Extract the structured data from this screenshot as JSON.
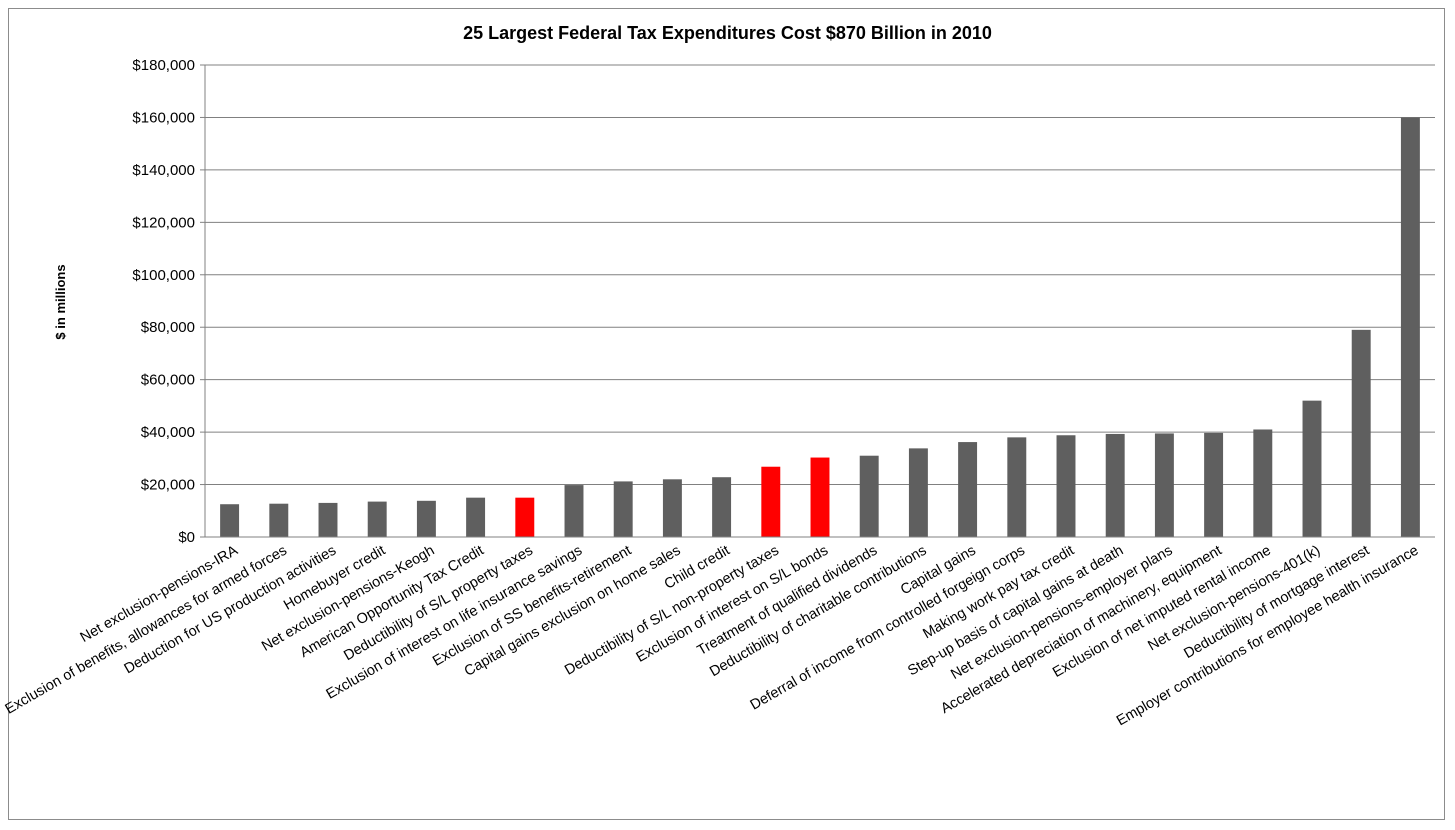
{
  "chart_data": {
    "type": "bar",
    "title": "25 Largest Federal Tax Expenditures Cost $870 Billion in 2010",
    "ylabel": "$ in millions",
    "xlabel": "",
    "ylim": [
      0,
      180000
    ],
    "ytick_step": 20000,
    "ytick_labels": [
      "$0",
      "$20,000",
      "$40,000",
      "$60,000",
      "$80,000",
      "$100,000",
      "$120,000",
      "$140,000",
      "$160,000",
      "$180,000"
    ],
    "grid": true,
    "legend": "none",
    "colors": {
      "default": "#5f5f5f",
      "highlight": "#ff0000",
      "grid": "#808080"
    },
    "categories": [
      "Net exclusion-pensions-IRA",
      "Exclusion of benefits, allowances for armed forces",
      "Deduction for US production activities",
      "Homebuyer credit",
      "Net exclusion-pensions-Keogh",
      "American Opportunity Tax Credit",
      "Deductibility of S/L property taxes",
      "Exclusion of interest on life insurance savings",
      "Exclusion of SS benefits-retirement",
      "Capital gains exclusion on home sales",
      "Child credit",
      "Deductibility of S/L non-property taxes",
      "Exclusion of interest on S/L bonds",
      "Treatment of qualified dividends",
      "Deductibility of charitable contributions",
      "Capital gains",
      "Deferral of income from controlled forgeign corps",
      "Making work pay tax credit",
      "Step-up basis of capital gains at death",
      "Net exclusion-pensions-employer plans",
      "Accelerated depreciation of machinery, equipment",
      "Exclusion of net imputed rental income",
      "Net exclusion-pensions-401(k)",
      "Deductibility of mortgage interest",
      "Employer contributions for employee health insurance"
    ],
    "values": [
      12500,
      12700,
      13000,
      13500,
      13800,
      15000,
      15000,
      19800,
      21200,
      22000,
      22800,
      26800,
      30300,
      31000,
      33800,
      36200,
      38000,
      38800,
      39300,
      39500,
      39700,
      41000,
      52000,
      79000,
      160000
    ],
    "highlighted": [
      6,
      11,
      12
    ]
  }
}
